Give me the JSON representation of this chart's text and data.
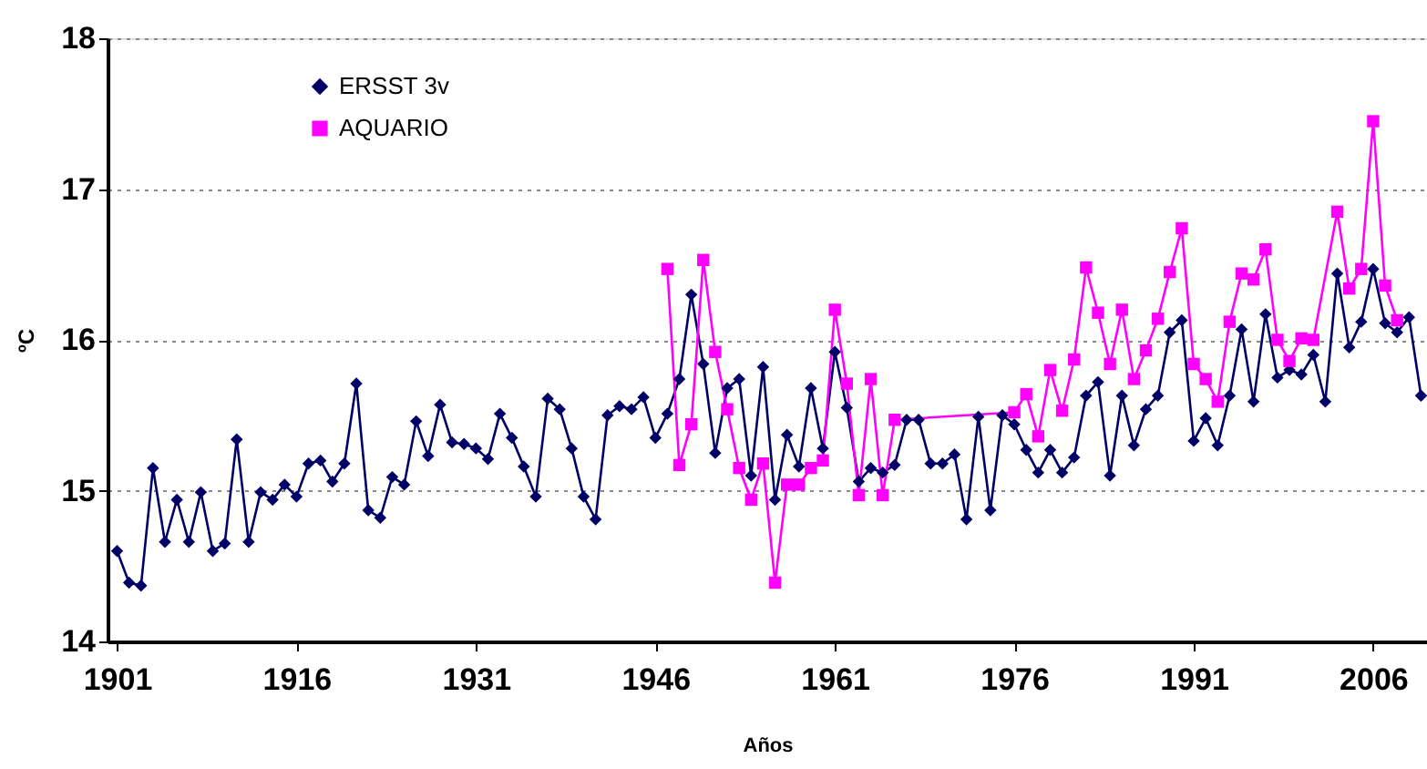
{
  "chart_data": {
    "type": "line",
    "xlabel": "Años",
    "ylabel": "ºC",
    "xlim": [
      1900.2,
      2010.5
    ],
    "xticks": [
      1901,
      1916,
      1931,
      1946,
      1961,
      1976,
      1991,
      2006
    ],
    "ylim": [
      14,
      18
    ],
    "yticks": [
      14,
      15,
      16,
      17,
      18
    ],
    "grid": "y",
    "legend": "top left",
    "series": [
      {
        "name": "ERSST 3v",
        "color": "#000066",
        "marker": "diamond",
        "x": [
          1901,
          1902,
          1903,
          1904,
          1905,
          1906,
          1907,
          1908,
          1909,
          1910,
          1911,
          1912,
          1913,
          1914,
          1915,
          1916,
          1917,
          1918,
          1919,
          1920,
          1921,
          1922,
          1923,
          1924,
          1925,
          1926,
          1927,
          1928,
          1929,
          1930,
          1931,
          1932,
          1933,
          1934,
          1935,
          1936,
          1937,
          1938,
          1939,
          1940,
          1941,
          1942,
          1943,
          1944,
          1945,
          1946,
          1947,
          1948,
          1949,
          1950,
          1951,
          1952,
          1953,
          1954,
          1955,
          1956,
          1957,
          1958,
          1959,
          1960,
          1961,
          1962,
          1963,
          1964,
          1965,
          1966,
          1967,
          1968,
          1969,
          1970,
          1971,
          1972,
          1973,
          1974,
          1975,
          1976,
          1977,
          1978,
          1979,
          1980,
          1981,
          1982,
          1983,
          1984,
          1985,
          1986,
          1987,
          1988,
          1989,
          1990,
          1991,
          1992,
          1993,
          1994,
          1995,
          1996,
          1997,
          1998,
          1999,
          2000,
          2001,
          2002,
          2003,
          2004,
          2005,
          2006,
          2007,
          2008,
          2009,
          2010
        ],
        "values": [
          14.6,
          14.39,
          14.37,
          15.15,
          14.66,
          14.94,
          14.66,
          14.99,
          14.6,
          14.65,
          15.34,
          14.66,
          14.99,
          14.94,
          15.04,
          14.96,
          15.18,
          15.2,
          15.06,
          15.18,
          15.71,
          14.87,
          14.82,
          15.09,
          15.04,
          15.46,
          15.23,
          15.57,
          15.32,
          15.31,
          15.28,
          15.21,
          15.51,
          15.35,
          15.16,
          14.96,
          15.61,
          15.54,
          15.28,
          14.96,
          14.81,
          15.5,
          15.56,
          15.54,
          15.62,
          15.35,
          15.51,
          15.74,
          16.3,
          15.84,
          15.25,
          15.68,
          15.74,
          15.1,
          15.82,
          14.94,
          15.37,
          15.16,
          15.68,
          15.28,
          15.92,
          15.55,
          15.06,
          15.15,
          15.12,
          15.17,
          15.47,
          15.47,
          15.18,
          15.18,
          15.24,
          14.81,
          15.49,
          14.87,
          15.5,
          15.44,
          15.27,
          15.12,
          15.27,
          15.12,
          15.22,
          15.63,
          15.72,
          15.1,
          15.63,
          15.3,
          15.54,
          15.63,
          16.05,
          16.13,
          15.33,
          15.48,
          15.3,
          15.63,
          16.07,
          15.59,
          16.17,
          15.75,
          15.8,
          15.77,
          15.9,
          15.59,
          16.44,
          15.95,
          16.12,
          16.47,
          16.11,
          16.05,
          16.15,
          15.63
        ]
      },
      {
        "name": "AQUARIO",
        "color": "#ff00ff",
        "marker": "square",
        "x": [
          1947,
          1948,
          1949,
          1950,
          1951,
          1952,
          1953,
          1954,
          1955,
          1956,
          1957,
          1958,
          1959,
          1960,
          1961,
          1962,
          1963,
          1964,
          1965,
          1966,
          1976,
          1977,
          1978,
          1979,
          1980,
          1981,
          1982,
          1983,
          1984,
          1985,
          1986,
          1987,
          1988,
          1989,
          1990,
          1991,
          1992,
          1993,
          1994,
          1995,
          1996,
          1997,
          1998,
          1999,
          2000,
          2001,
          2003,
          2004,
          2005,
          2006,
          2007,
          2008
        ],
        "values": [
          16.47,
          15.17,
          15.44,
          16.53,
          15.92,
          15.54,
          15.15,
          14.94,
          15.18,
          14.39,
          15.04,
          15.04,
          15.15,
          15.2,
          16.2,
          15.71,
          14.97,
          15.74,
          14.97,
          15.47,
          15.52,
          15.64,
          15.36,
          15.8,
          15.53,
          15.87,
          16.48,
          16.18,
          15.84,
          16.2,
          15.74,
          15.93,
          16.14,
          16.45,
          16.74,
          15.84,
          15.74,
          15.59,
          16.12,
          16.44,
          16.4,
          16.6,
          16.0,
          15.86,
          16.01,
          16.0,
          16.85,
          16.34,
          16.47,
          17.45,
          16.36,
          16.13
        ]
      }
    ]
  }
}
